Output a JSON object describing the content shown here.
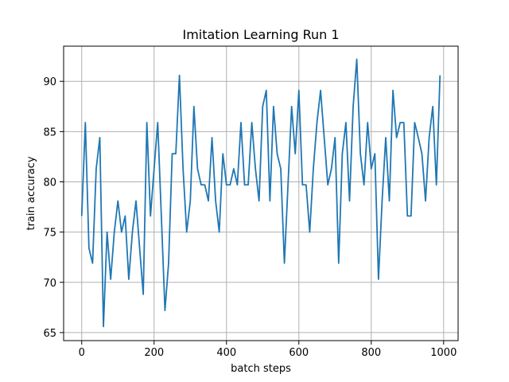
{
  "chart_data": {
    "type": "line",
    "title": "Imitation Learning Run 1",
    "xlabel": "batch steps",
    "ylabel": "train accuracy",
    "xlim": [
      -50,
      1040
    ],
    "ylim": [
      64.2,
      93.5
    ],
    "xticks": [
      0,
      200,
      400,
      600,
      800,
      1000
    ],
    "yticks": [
      65,
      70,
      75,
      80,
      85,
      90
    ],
    "grid": true,
    "line_color": "#1f77b4",
    "series": [
      {
        "x": [
          0,
          10,
          20,
          30,
          40,
          50,
          60,
          70,
          80,
          90,
          100,
          110,
          120,
          130,
          140,
          150,
          160,
          170,
          180,
          190,
          200,
          210,
          220,
          230,
          240,
          250,
          260,
          270,
          280,
          290,
          300,
          310,
          320,
          330,
          340,
          350,
          360,
          370,
          380,
          390,
          400,
          410,
          420,
          430,
          440,
          450,
          460,
          470,
          480,
          490,
          500,
          510,
          520,
          530,
          540,
          550,
          560,
          570,
          580,
          590,
          600,
          610,
          620,
          630,
          640,
          650,
          660,
          670,
          680,
          690,
          700,
          710,
          720,
          730,
          740,
          750,
          760,
          770,
          780,
          790,
          800,
          810,
          820,
          830,
          840,
          850,
          860,
          870,
          880,
          890,
          900,
          910,
          920,
          930,
          940,
          950,
          960,
          970,
          980,
          990
        ],
        "values": [
          76.6,
          85.9,
          73.4,
          71.9,
          81.3,
          84.4,
          65.6,
          75.0,
          70.3,
          75.0,
          78.1,
          75.0,
          76.6,
          70.3,
          75.0,
          78.1,
          73.4,
          68.8,
          85.9,
          76.6,
          81.3,
          85.9,
          76.6,
          67.2,
          71.9,
          82.8,
          82.8,
          90.6,
          81.3,
          75.0,
          78.1,
          87.5,
          81.3,
          79.7,
          79.7,
          78.1,
          84.4,
          78.1,
          75.0,
          82.8,
          79.7,
          79.7,
          81.3,
          79.7,
          85.9,
          79.7,
          79.7,
          85.9,
          81.3,
          78.1,
          87.5,
          89.1,
          78.1,
          87.5,
          82.8,
          81.3,
          71.9,
          79.7,
          87.5,
          82.8,
          89.1,
          79.7,
          79.7,
          75.0,
          81.3,
          85.9,
          89.1,
          84.4,
          79.7,
          81.3,
          84.4,
          71.9,
          82.8,
          85.9,
          78.1,
          87.5,
          92.2,
          82.8,
          79.7,
          85.9,
          81.3,
          82.8,
          70.3,
          78.1,
          84.4,
          78.1,
          89.1,
          84.4,
          85.9,
          85.9,
          76.6,
          76.6,
          85.9,
          84.4,
          82.8,
          78.1,
          84.4,
          87.5,
          79.7,
          90.6
        ]
      }
    ]
  }
}
